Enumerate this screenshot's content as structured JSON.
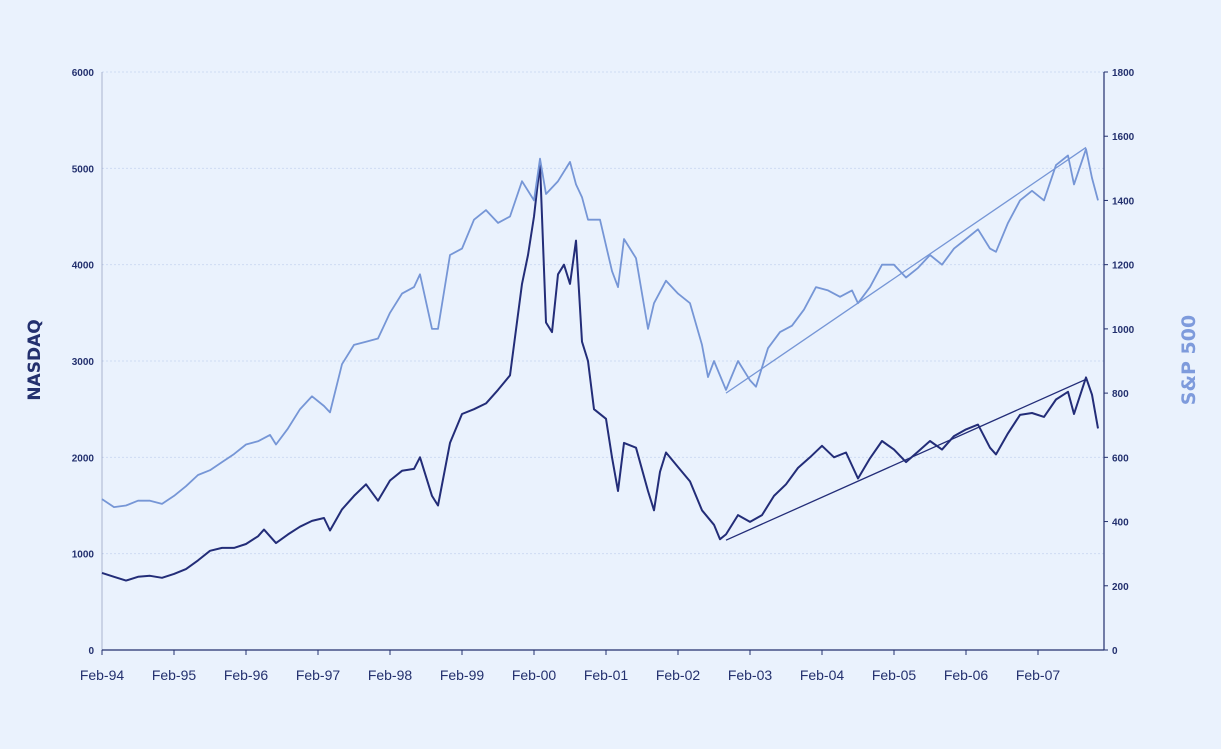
{
  "colors": {
    "background": "#eaf2fd",
    "nasdaq": "#232d78",
    "sp500": "#7696d6",
    "axis": "#23306e",
    "grid": "#cfdcf2"
  },
  "chart_data": {
    "type": "line",
    "title": "",
    "ylabel_left": "NASDAQ",
    "ylabel_right": "S&P 500",
    "grid": true,
    "xlim": [
      "1994-02",
      "2008-01"
    ],
    "ylim_left": [
      0,
      6000
    ],
    "ylim_right": [
      0,
      1800
    ],
    "x_ticks": [
      "Feb-94",
      "Feb-95",
      "Feb-96",
      "Feb-97",
      "Feb-98",
      "Feb-99",
      "Feb-00",
      "Feb-01",
      "Feb-02",
      "Feb-03",
      "Feb-04",
      "Feb-05",
      "Feb-06",
      "Feb-07"
    ],
    "y_ticks_left": [
      "0",
      "1000",
      "2000",
      "3000",
      "4000",
      "5000",
      "6000"
    ],
    "y_ticks_right": [
      "0",
      "200",
      "400",
      "600",
      "800",
      "1000",
      "1200",
      "1400",
      "1600",
      "1800"
    ],
    "series": [
      {
        "name": "NASDAQ",
        "axis": "left",
        "points": [
          [
            "1994-02",
            800
          ],
          [
            "1994-04",
            760
          ],
          [
            "1994-06",
            720
          ],
          [
            "1994-08",
            760
          ],
          [
            "1994-10",
            770
          ],
          [
            "1994-12",
            750
          ],
          [
            "1995-02",
            790
          ],
          [
            "1995-04",
            840
          ],
          [
            "1995-06",
            930
          ],
          [
            "1995-08",
            1030
          ],
          [
            "1995-10",
            1060
          ],
          [
            "1995-12",
            1060
          ],
          [
            "1996-02",
            1100
          ],
          [
            "1996-04",
            1180
          ],
          [
            "1996-05",
            1250
          ],
          [
            "1996-07",
            1110
          ],
          [
            "1996-09",
            1200
          ],
          [
            "1996-11",
            1280
          ],
          [
            "1997-01",
            1340
          ],
          [
            "1997-03",
            1370
          ],
          [
            "1997-04",
            1240
          ],
          [
            "1997-06",
            1460
          ],
          [
            "1997-08",
            1600
          ],
          [
            "1997-10",
            1720
          ],
          [
            "1997-12",
            1550
          ],
          [
            "1998-02",
            1760
          ],
          [
            "1998-04",
            1860
          ],
          [
            "1998-06",
            1880
          ],
          [
            "1998-07",
            2000
          ],
          [
            "1998-09",
            1600
          ],
          [
            "1998-10",
            1500
          ],
          [
            "1998-12",
            2150
          ],
          [
            "1999-02",
            2450
          ],
          [
            "1999-04",
            2500
          ],
          [
            "1999-06",
            2560
          ],
          [
            "1999-08",
            2700
          ],
          [
            "1999-10",
            2850
          ],
          [
            "1999-12",
            3800
          ],
          [
            "2000-01",
            4100
          ],
          [
            "2000-02",
            4500
          ],
          [
            "2000-03",
            5050
          ],
          [
            "2000-04",
            3400
          ],
          [
            "2000-05",
            3300
          ],
          [
            "2000-06",
            3900
          ],
          [
            "2000-07",
            4000
          ],
          [
            "2000-08",
            3800
          ],
          [
            "2000-09",
            4250
          ],
          [
            "2000-10",
            3200
          ],
          [
            "2000-11",
            3000
          ],
          [
            "2000-12",
            2500
          ],
          [
            "2001-02",
            2400
          ],
          [
            "2001-03",
            2000
          ],
          [
            "2001-04",
            1650
          ],
          [
            "2001-05",
            2150
          ],
          [
            "2001-07",
            2100
          ],
          [
            "2001-09",
            1650
          ],
          [
            "2001-10",
            1450
          ],
          [
            "2001-11",
            1850
          ],
          [
            "2001-12",
            2050
          ],
          [
            "2002-02",
            1900
          ],
          [
            "2002-04",
            1750
          ],
          [
            "2002-06",
            1450
          ],
          [
            "2002-08",
            1300
          ],
          [
            "2002-09",
            1150
          ],
          [
            "2002-10",
            1200
          ],
          [
            "2002-12",
            1400
          ],
          [
            "2003-02",
            1330
          ],
          [
            "2003-04",
            1400
          ],
          [
            "2003-06",
            1600
          ],
          [
            "2003-08",
            1720
          ],
          [
            "2003-10",
            1890
          ],
          [
            "2003-12",
            2000
          ],
          [
            "2004-02",
            2120
          ],
          [
            "2004-04",
            2000
          ],
          [
            "2004-06",
            2050
          ],
          [
            "2004-08",
            1780
          ],
          [
            "2004-10",
            1990
          ],
          [
            "2004-12",
            2170
          ],
          [
            "2005-02",
            2080
          ],
          [
            "2005-04",
            1950
          ],
          [
            "2005-06",
            2060
          ],
          [
            "2005-08",
            2170
          ],
          [
            "2005-10",
            2080
          ],
          [
            "2005-12",
            2220
          ],
          [
            "2006-02",
            2290
          ],
          [
            "2006-04",
            2340
          ],
          [
            "2006-06",
            2100
          ],
          [
            "2006-07",
            2030
          ],
          [
            "2006-09",
            2250
          ],
          [
            "2006-11",
            2440
          ],
          [
            "2007-01",
            2460
          ],
          [
            "2007-03",
            2420
          ],
          [
            "2007-05",
            2600
          ],
          [
            "2007-07",
            2680
          ],
          [
            "2007-08",
            2450
          ],
          [
            "2007-10",
            2830
          ],
          [
            "2007-11",
            2650
          ],
          [
            "2007-12",
            2300
          ]
        ]
      },
      {
        "name": "S&P 500",
        "axis": "right",
        "points": [
          [
            "1994-02",
            470
          ],
          [
            "1994-04",
            445
          ],
          [
            "1994-06",
            450
          ],
          [
            "1994-08",
            465
          ],
          [
            "1994-10",
            465
          ],
          [
            "1994-12",
            455
          ],
          [
            "1995-02",
            480
          ],
          [
            "1995-04",
            510
          ],
          [
            "1995-06",
            545
          ],
          [
            "1995-08",
            560
          ],
          [
            "1995-10",
            585
          ],
          [
            "1995-12",
            610
          ],
          [
            "1996-02",
            640
          ],
          [
            "1996-04",
            650
          ],
          [
            "1996-06",
            670
          ],
          [
            "1996-07",
            640
          ],
          [
            "1996-09",
            690
          ],
          [
            "1996-11",
            750
          ],
          [
            "1997-01",
            790
          ],
          [
            "1997-03",
            760
          ],
          [
            "1997-04",
            740
          ],
          [
            "1997-06",
            890
          ],
          [
            "1997-08",
            950
          ],
          [
            "1997-10",
            960
          ],
          [
            "1997-12",
            970
          ],
          [
            "1998-02",
            1050
          ],
          [
            "1998-04",
            1110
          ],
          [
            "1998-06",
            1130
          ],
          [
            "1998-07",
            1170
          ],
          [
            "1998-09",
            1000
          ],
          [
            "1998-10",
            1000
          ],
          [
            "1998-12",
            1230
          ],
          [
            "1999-02",
            1250
          ],
          [
            "1999-04",
            1340
          ],
          [
            "1999-06",
            1370
          ],
          [
            "1999-08",
            1330
          ],
          [
            "1999-10",
            1350
          ],
          [
            "1999-12",
            1460
          ],
          [
            "2000-02",
            1400
          ],
          [
            "2000-03",
            1530
          ],
          [
            "2000-04",
            1420
          ],
          [
            "2000-06",
            1460
          ],
          [
            "2000-08",
            1520
          ],
          [
            "2000-09",
            1450
          ],
          [
            "2000-10",
            1410
          ],
          [
            "2000-11",
            1340
          ],
          [
            "2001-01",
            1340
          ],
          [
            "2001-03",
            1180
          ],
          [
            "2001-04",
            1130
          ],
          [
            "2001-05",
            1280
          ],
          [
            "2001-07",
            1220
          ],
          [
            "2001-09",
            1000
          ],
          [
            "2001-10",
            1080
          ],
          [
            "2001-12",
            1150
          ],
          [
            "2002-02",
            1110
          ],
          [
            "2002-04",
            1080
          ],
          [
            "2002-06",
            950
          ],
          [
            "2002-07",
            850
          ],
          [
            "2002-08",
            900
          ],
          [
            "2002-10",
            810
          ],
          [
            "2002-12",
            900
          ],
          [
            "2003-02",
            840
          ],
          [
            "2003-03",
            820
          ],
          [
            "2003-05",
            940
          ],
          [
            "2003-07",
            990
          ],
          [
            "2003-09",
            1010
          ],
          [
            "2003-11",
            1060
          ],
          [
            "2004-01",
            1130
          ],
          [
            "2004-03",
            1120
          ],
          [
            "2004-05",
            1100
          ],
          [
            "2004-07",
            1120
          ],
          [
            "2004-08",
            1080
          ],
          [
            "2004-10",
            1130
          ],
          [
            "2004-12",
            1200
          ],
          [
            "2005-02",
            1200
          ],
          [
            "2005-04",
            1160
          ],
          [
            "2005-06",
            1190
          ],
          [
            "2005-08",
            1230
          ],
          [
            "2005-10",
            1200
          ],
          [
            "2005-12",
            1250
          ],
          [
            "2006-02",
            1280
          ],
          [
            "2006-04",
            1310
          ],
          [
            "2006-06",
            1250
          ],
          [
            "2006-07",
            1240
          ],
          [
            "2006-09",
            1330
          ],
          [
            "2006-11",
            1400
          ],
          [
            "2007-01",
            1430
          ],
          [
            "2007-03",
            1400
          ],
          [
            "2007-05",
            1510
          ],
          [
            "2007-07",
            1540
          ],
          [
            "2007-08",
            1450
          ],
          [
            "2007-10",
            1560
          ],
          [
            "2007-11",
            1470
          ],
          [
            "2007-12",
            1400
          ]
        ]
      }
    ],
    "trendlines": [
      {
        "series": "NASDAQ",
        "axis": "left",
        "from": [
          "2002-10",
          1140
        ],
        "to": [
          "2007-10",
          2810
        ]
      },
      {
        "series": "S&P 500",
        "axis": "right",
        "from": [
          "2002-10",
          800
        ],
        "to": [
          "2007-10",
          1565
        ]
      }
    ]
  }
}
